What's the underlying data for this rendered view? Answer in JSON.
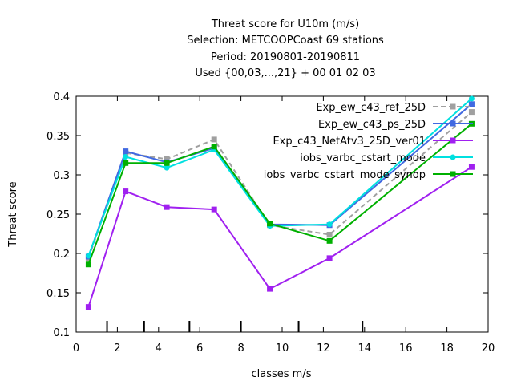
{
  "chart_data": {
    "type": "line",
    "title_lines": [
      "Threat score  for U10m (m/s)",
      "Selection: METCOOPCoast     69 stations",
      "Period: 20190801-20190811",
      "Used {00,03,...,21} + 00 01 02 03"
    ],
    "xlabel": "classes m/s",
    "ylabel": "Threat score",
    "xlim": [
      0,
      20
    ],
    "ylim": [
      0.1,
      0.4
    ],
    "xticks": [
      0,
      2,
      4,
      6,
      8,
      10,
      12,
      14,
      16,
      18,
      20
    ],
    "xtick_labels": [
      "0",
      "2",
      "4",
      "6",
      "8",
      "10",
      "12",
      "14",
      "16",
      "18",
      "20"
    ],
    "yticks": [
      0.1,
      0.15,
      0.2,
      0.25,
      0.3,
      0.35,
      0.4
    ],
    "ytick_labels": [
      "0.1",
      "0.15",
      "0.2",
      "0.25",
      "0.3",
      "0.35",
      "0.4"
    ],
    "class_boundaries": [
      1.5,
      3.3,
      5.5,
      8.0,
      10.8,
      13.9
    ],
    "grid": false,
    "legend_position": "top-right",
    "x": [
      0.6,
      2.4,
      4.4,
      6.7,
      9.4,
      12.3,
      19.2
    ],
    "series": [
      {
        "name": "Exp_ew_c43_ref_25D",
        "color": "#a0a0a0",
        "dashed": true,
        "marker": "square",
        "values": [
          0.194,
          0.328,
          0.32,
          0.345,
          0.236,
          0.224,
          0.38
        ]
      },
      {
        "name": "Exp_ew_c43_ps_25D",
        "color": "#4169e1",
        "dashed": false,
        "marker": "square",
        "values": [
          0.196,
          0.33,
          0.316,
          0.334,
          0.237,
          0.236,
          0.39
        ]
      },
      {
        "name": "Exp_c43_NetAtv3_25D_ver01",
        "color": "#a020f0",
        "dashed": false,
        "marker": "square",
        "values": [
          0.132,
          0.279,
          0.259,
          0.256,
          0.155,
          0.194,
          0.31
        ]
      },
      {
        "name": "iobs_varbc_cstart_mode",
        "color": "#00e0e0",
        "dashed": false,
        "marker": "circle",
        "values": [
          0.197,
          0.323,
          0.309,
          0.332,
          0.235,
          0.237,
          0.397
        ]
      },
      {
        "name": "iobs_varbc_cstart_mode_synop",
        "color": "#00b000",
        "dashed": false,
        "marker": "square",
        "values": [
          0.186,
          0.315,
          0.315,
          0.336,
          0.238,
          0.216,
          0.365
        ]
      }
    ]
  }
}
